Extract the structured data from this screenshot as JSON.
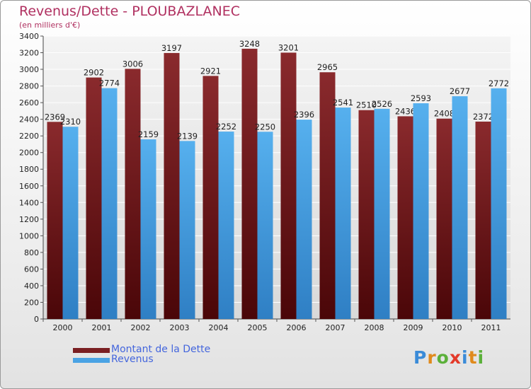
{
  "chart_data": {
    "type": "bar",
    "title": "Revenus/Dette - PLOUBAZLANEC",
    "subtitle": "(en milliers d'€)",
    "categories": [
      "2000",
      "2001",
      "2002",
      "2003",
      "2004",
      "2005",
      "2006",
      "2007",
      "2008",
      "2009",
      "2010",
      "2011"
    ],
    "series": [
      {
        "name": "Montant de la Dette",
        "color": "#7a1f22",
        "values": [
          2369,
          2902,
          3006,
          3197,
          2921,
          3248,
          3201,
          2965,
          2510,
          2436,
          2408,
          2372
        ]
      },
      {
        "name": "Revenus",
        "color": "#4aa3e4",
        "values": [
          2310,
          2774,
          2159,
          2139,
          2252,
          2250,
          2396,
          2541,
          2526,
          2593,
          2677,
          2772
        ]
      }
    ],
    "ylim": [
      0,
      3400
    ],
    "yticks": [
      0,
      200,
      400,
      600,
      800,
      1000,
      1200,
      1400,
      1600,
      1800,
      2000,
      2200,
      2400,
      2600,
      2800,
      3000,
      3200,
      3400
    ],
    "grid": true,
    "legend_position": "bottom-left"
  },
  "logo": {
    "letters": [
      "P",
      "r",
      "o",
      "x",
      "i",
      "t",
      "i"
    ]
  }
}
